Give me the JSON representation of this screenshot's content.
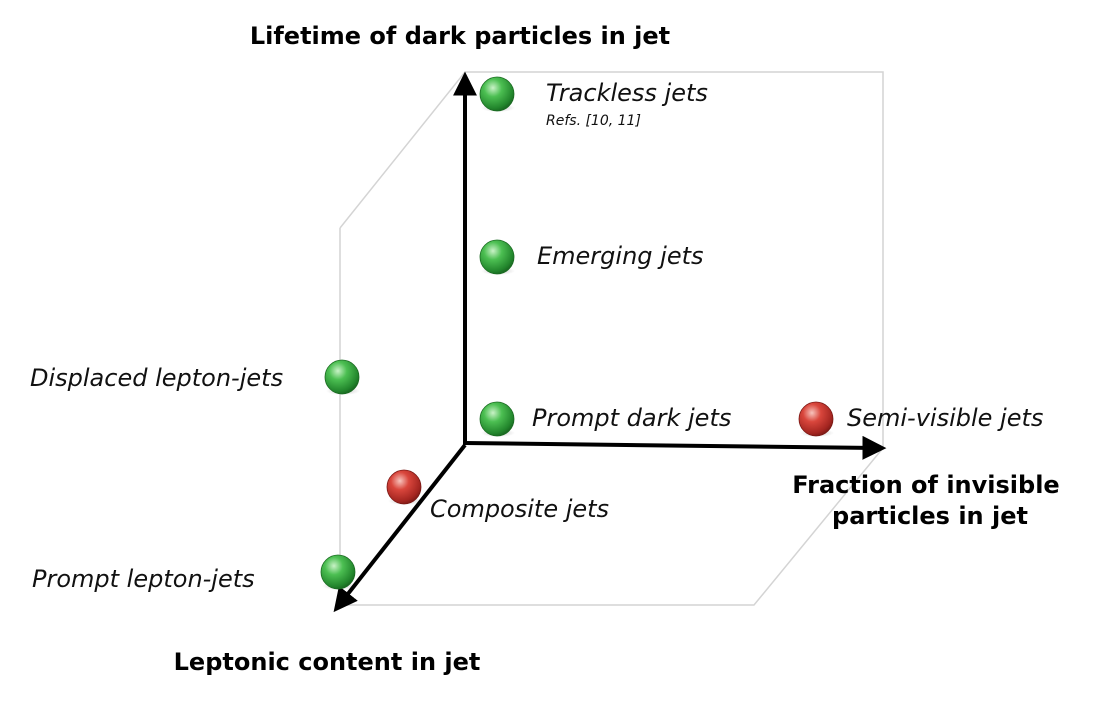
{
  "axes": {
    "vertical": {
      "title": "Lifetime of dark particles in jet"
    },
    "horizontal": {
      "title_line1": "Fraction of invisible",
      "title_line2": "particles in jet"
    },
    "depth": {
      "title": "Leptonic content in jet"
    }
  },
  "colors": {
    "green": "#3fae49",
    "red": "#d23b35",
    "axis": "#000000",
    "box": "#d4d4d4"
  },
  "items": {
    "trackless": {
      "label": "Trackless jets",
      "ref": "Refs. [10, 11]",
      "color": "green"
    },
    "emerging": {
      "label": "Emerging jets",
      "color": "green"
    },
    "prompt_dark": {
      "label": "Prompt dark jets",
      "color": "green"
    },
    "semi_visible": {
      "label": "Semi-visible jets",
      "color": "red"
    },
    "displaced_lepton": {
      "label": "Displaced lepton-jets",
      "color": "green"
    },
    "composite": {
      "label": "Composite jets",
      "color": "red"
    },
    "prompt_lepton": {
      "label": "Prompt lepton-jets",
      "color": "green"
    }
  }
}
